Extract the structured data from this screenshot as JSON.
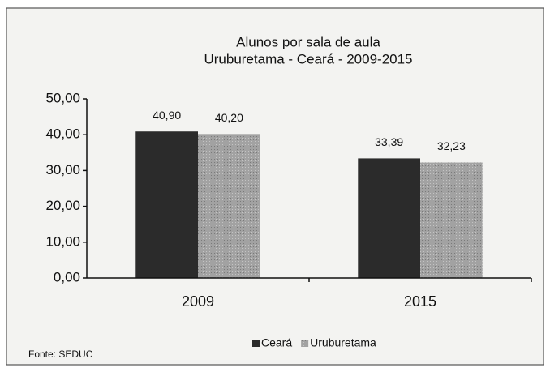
{
  "chart_data": {
    "type": "bar",
    "title": "Alunos por sala de aula",
    "subtitle": "Uruburetama - Ceará - 2009-2015",
    "categories": [
      "2009",
      "2015"
    ],
    "series": [
      {
        "name": "Ceará",
        "color": "#2b2b2b",
        "values": [
          40.9,
          33.39
        ],
        "value_labels": [
          "40,90",
          "33,39"
        ]
      },
      {
        "name": "Uruburetama",
        "color": "#9c9c9c",
        "values": [
          40.2,
          32.23
        ],
        "value_labels": [
          "40,20",
          "32,23"
        ]
      }
    ],
    "ylim": [
      0,
      50
    ],
    "yticks": [
      {
        "value": 0,
        "label": "0,00"
      },
      {
        "value": 10,
        "label": "10,00"
      },
      {
        "value": 20,
        "label": "20,00"
      },
      {
        "value": 30,
        "label": "30,00"
      },
      {
        "value": 40,
        "label": "40,00"
      },
      {
        "value": 50,
        "label": "50,00"
      }
    ],
    "grid": false,
    "legend": "bottom",
    "source": "Fonte: SEDUC"
  }
}
